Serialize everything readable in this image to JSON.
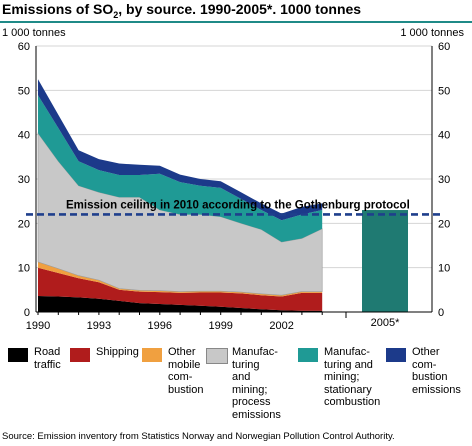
{
  "title_main": "Emissions of SO",
  "title_sub": "2",
  "title_rest": ", by source. 1990-2005*. 1000 tonnes",
  "unit_left": "1 000 tonnes",
  "unit_right": "1 000 tonnes",
  "source": "Source: Emission inventory from Statistics Norway and Norwegian Pollution Control Authority.",
  "chart_data": {
    "type": "area",
    "title": "Emissions of SO2, by source. 1990-2005*. 1000 tonnes",
    "ylabel": "1 000 tonnes",
    "ylim": [
      0,
      60
    ],
    "yticks": [
      0,
      10,
      20,
      30,
      40,
      50,
      60
    ],
    "x": [
      1990,
      1991,
      1992,
      1993,
      1994,
      1995,
      1996,
      1997,
      1998,
      1999,
      2000,
      2001,
      2002,
      2003,
      2004
    ],
    "xticks": [
      "1990",
      "1993",
      "1996",
      "1999",
      "2002"
    ],
    "stacked": true,
    "series": [
      {
        "name": "Road traffic",
        "color": "#000000",
        "values": [
          3.6,
          3.5,
          3.3,
          3.0,
          2.5,
          2.0,
          1.8,
          1.6,
          1.4,
          1.2,
          0.9,
          0.6,
          0.4,
          0.3,
          0.3
        ]
      },
      {
        "name": "Shipping",
        "color": "#b01c1c",
        "values": [
          6.4,
          5.3,
          4.3,
          3.7,
          2.5,
          2.6,
          2.7,
          2.7,
          3.0,
          3.2,
          3.3,
          3.2,
          3.1,
          4.0,
          4.0
        ]
      },
      {
        "name": "Other mobile combustion",
        "color": "#f0a040",
        "values": [
          1.3,
          1.0,
          0.6,
          0.5,
          0.3,
          0.3,
          0.3,
          0.3,
          0.3,
          0.3,
          0.3,
          0.3,
          0.3,
          0.3,
          0.3
        ]
      },
      {
        "name": "Manufacturing and mining; process emissions",
        "color": "#c8c8c8",
        "values": [
          29.0,
          24.2,
          20.3,
          19.8,
          20.6,
          21.0,
          18.2,
          17.4,
          17.3,
          16.8,
          15.5,
          14.5,
          12.0,
          12.0,
          14.2
        ]
      },
      {
        "name": "Manufacturing and mining; stationary combustion",
        "color": "#1f9a95",
        "values": [
          8.6,
          7.5,
          5.5,
          5.0,
          5.0,
          5.0,
          8.2,
          7.3,
          6.5,
          6.5,
          5.5,
          4.4,
          4.9,
          5.4,
          4.2
        ]
      },
      {
        "name": "Other combustion emissions",
        "color": "#1c3a8a",
        "values": [
          3.6,
          3.0,
          2.5,
          2.5,
          2.6,
          2.3,
          1.8,
          1.7,
          1.5,
          1.5,
          1.5,
          1.5,
          1.5,
          1.7,
          1.5
        ]
      }
    ],
    "bar_2005": {
      "label": "2005*",
      "value": 23.0,
      "color": "#1f7a72"
    },
    "ceiling": {
      "label": "Emission ceiling in 2010 according to the Gothenburg protocol",
      "value": 22.0,
      "color": "#1f3f8c"
    }
  },
  "legend": [
    {
      "label": "Road\ntraffic",
      "color": "#000000"
    },
    {
      "label": "Shipping",
      "color": "#b01c1c"
    },
    {
      "label": "Other\nmobile\ncom-\nbustion",
      "color": "#f0a040"
    },
    {
      "label": "Manufac-\nturing and\nmining;\nprocess\nemissions",
      "color": "#c8c8c8"
    },
    {
      "label": "Manufac-\nturing and\nmining;\nstationary\ncombustion",
      "color": "#1f9a95"
    },
    {
      "label": "Other com-\nbustion\nemissions",
      "color": "#1c3a8a"
    }
  ]
}
